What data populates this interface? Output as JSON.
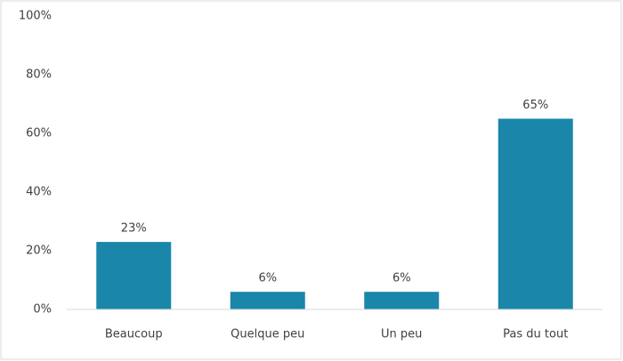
{
  "chart_data": {
    "type": "bar",
    "categories": [
      "Beaucoup",
      "Quelque peu",
      "Un peu",
      "Pas du tout"
    ],
    "values": [
      23,
      6,
      6,
      65
    ],
    "value_labels": [
      "23%",
      "6%",
      "6%",
      "65%"
    ],
    "color": "#1a86aa",
    "ylim": [
      0,
      100
    ],
    "yticks": [
      {
        "value": 0,
        "label": "0%"
      },
      {
        "value": 20,
        "label": "20%"
      },
      {
        "value": 40,
        "label": "40%"
      },
      {
        "value": 60,
        "label": "60%"
      },
      {
        "value": 80,
        "label": "80%"
      },
      {
        "value": 100,
        "label": "100%"
      }
    ],
    "grid": false
  }
}
